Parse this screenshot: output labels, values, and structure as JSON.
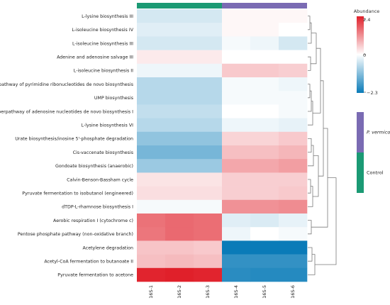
{
  "chart_data": {
    "type": "heatmap",
    "title": "",
    "xlabel": "",
    "ylabel": "",
    "columns": [
      "16S-1",
      "16S-2",
      "16S-3",
      "16S-4",
      "16S-5",
      "16S-6"
    ],
    "rows": [
      "L-lysine biosynthesis III",
      "L-isoleucine biosynthesis IV",
      "L-isoleucine biosynthesis III",
      "Adenine and adenosine salvage III",
      "L-isoleucine biosynthesis II",
      "Superpathway of pyrimidine ribonucleotides de novo biosynthesis",
      "UMP biosynthesis",
      "Superpathway of adenosine nucleotides de novo biosynthesis I",
      "L-lysine biosynthesis VI",
      "Urate biosynthesis/inosine 5'-phosphate degradation",
      "Cis-vaccenate biosynthesis",
      "Gondoate biosynthesis (anaerobic)",
      "Calvin-Benson-Bassham cycle",
      "Pyruvate fermentation to isobutanol (engineered)",
      "dTDP-L-rhamnose biosynthesis I",
      "Aerobic respiration I (cytochrome c)",
      "Pentose phosphate pathway (non-oxidative branch)",
      "Acetylene degradation",
      "Acetyl-CoA fermentation to butanoate II",
      "Pyruvate fermentation to acetone"
    ],
    "values": [
      [
        -0.3,
        -0.3,
        -0.3,
        0.05,
        0.05,
        0.05
      ],
      [
        -0.2,
        -0.2,
        -0.2,
        0.05,
        0.05,
        0.0
      ],
      [
        -0.3,
        -0.3,
        -0.3,
        -0.05,
        -0.1,
        -0.3
      ],
      [
        0.15,
        0.15,
        0.15,
        0.0,
        0.0,
        0.0
      ],
      [
        -0.1,
        -0.1,
        -0.1,
        0.45,
        0.45,
        0.4
      ],
      [
        -0.55,
        -0.55,
        -0.55,
        -0.05,
        -0.05,
        -0.1
      ],
      [
        -0.55,
        -0.55,
        -0.55,
        -0.05,
        -0.05,
        -0.05
      ],
      [
        -0.45,
        -0.45,
        -0.45,
        0.0,
        0.0,
        -0.05
      ],
      [
        -0.55,
        -0.55,
        -0.55,
        -0.1,
        -0.1,
        -0.15
      ],
      [
        -0.9,
        -0.9,
        -0.9,
        0.35,
        0.35,
        0.45
      ],
      [
        -1.15,
        -1.15,
        -1.15,
        0.55,
        0.55,
        0.65
      ],
      [
        -0.8,
        -0.8,
        -0.8,
        0.8,
        0.8,
        0.9
      ],
      [
        0.2,
        0.2,
        0.2,
        0.4,
        0.4,
        0.4
      ],
      [
        0.25,
        0.25,
        0.25,
        0.4,
        0.4,
        0.45
      ],
      [
        -0.05,
        -0.05,
        -0.05,
        1.05,
        1.05,
        1.1
      ],
      [
        1.4,
        1.5,
        1.45,
        -0.2,
        -0.25,
        -0.15
      ],
      [
        1.35,
        1.5,
        1.45,
        -0.1,
        0.0,
        -0.05
      ],
      [
        0.5,
        0.5,
        0.45,
        -2.3,
        -2.3,
        -2.3
      ],
      [
        0.55,
        0.6,
        0.55,
        -1.85,
        -1.85,
        -1.85
      ],
      [
        2.35,
        2.4,
        2.35,
        -1.95,
        -2.0,
        -2.0
      ]
    ],
    "groups": [
      {
        "name": "Control",
        "color": "#1b9a74"
      },
      {
        "name": "P. vermicola",
        "color": "#7a6bb3"
      }
    ],
    "column_groups": [
      0,
      0,
      0,
      1,
      1,
      1
    ],
    "legend": {
      "title": "Abundance",
      "max": 2.4,
      "mid": 0,
      "min": -2.3,
      "max_label": "2.4",
      "mid_label": "0",
      "min_label": "−2.3",
      "color_high": "#e0202a",
      "color_mid": "#ffffff",
      "color_low": "#0a7bb8",
      "placement": "top-right"
    },
    "group_legend": {
      "placement": "right",
      "order": [
        "P. vermicola",
        "Control"
      ]
    },
    "row_dendrogram": true,
    "grid": false
  }
}
